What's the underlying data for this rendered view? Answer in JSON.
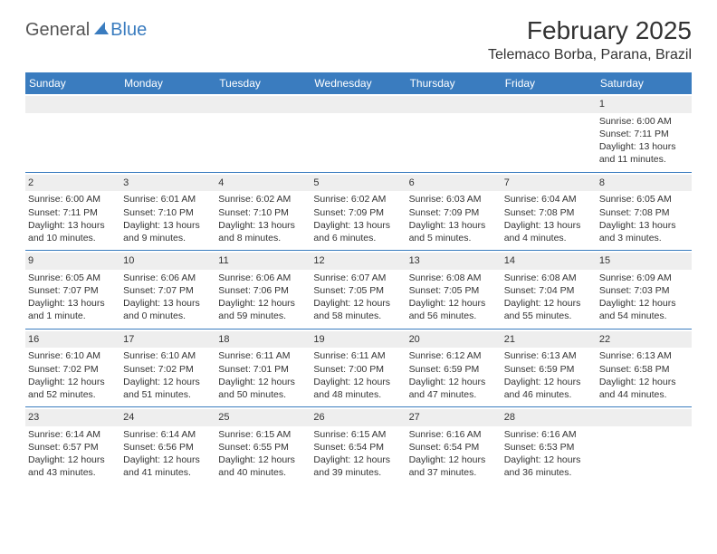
{
  "brand": {
    "word1": "General",
    "word2": "Blue",
    "logo_color": "#3a7cbf"
  },
  "title": {
    "month": "February 2025",
    "location": "Telemaco Borba, Parana, Brazil"
  },
  "colors": {
    "header_bg": "#3a7cbf",
    "header_text": "#ffffff",
    "daynum_bg": "#eeeeee",
    "week_divider": "#3a7cbf",
    "text": "#333333"
  },
  "day_names": [
    "Sunday",
    "Monday",
    "Tuesday",
    "Wednesday",
    "Thursday",
    "Friday",
    "Saturday"
  ],
  "weeks": [
    [
      {
        "day": "",
        "sunrise": "",
        "sunset": "",
        "daylight1": "",
        "daylight2": ""
      },
      {
        "day": "",
        "sunrise": "",
        "sunset": "",
        "daylight1": "",
        "daylight2": ""
      },
      {
        "day": "",
        "sunrise": "",
        "sunset": "",
        "daylight1": "",
        "daylight2": ""
      },
      {
        "day": "",
        "sunrise": "",
        "sunset": "",
        "daylight1": "",
        "daylight2": ""
      },
      {
        "day": "",
        "sunrise": "",
        "sunset": "",
        "daylight1": "",
        "daylight2": ""
      },
      {
        "day": "",
        "sunrise": "",
        "sunset": "",
        "daylight1": "",
        "daylight2": ""
      },
      {
        "day": "1",
        "sunrise": "Sunrise: 6:00 AM",
        "sunset": "Sunset: 7:11 PM",
        "daylight1": "Daylight: 13 hours",
        "daylight2": "and 11 minutes."
      }
    ],
    [
      {
        "day": "2",
        "sunrise": "Sunrise: 6:00 AM",
        "sunset": "Sunset: 7:11 PM",
        "daylight1": "Daylight: 13 hours",
        "daylight2": "and 10 minutes."
      },
      {
        "day": "3",
        "sunrise": "Sunrise: 6:01 AM",
        "sunset": "Sunset: 7:10 PM",
        "daylight1": "Daylight: 13 hours",
        "daylight2": "and 9 minutes."
      },
      {
        "day": "4",
        "sunrise": "Sunrise: 6:02 AM",
        "sunset": "Sunset: 7:10 PM",
        "daylight1": "Daylight: 13 hours",
        "daylight2": "and 8 minutes."
      },
      {
        "day": "5",
        "sunrise": "Sunrise: 6:02 AM",
        "sunset": "Sunset: 7:09 PM",
        "daylight1": "Daylight: 13 hours",
        "daylight2": "and 6 minutes."
      },
      {
        "day": "6",
        "sunrise": "Sunrise: 6:03 AM",
        "sunset": "Sunset: 7:09 PM",
        "daylight1": "Daylight: 13 hours",
        "daylight2": "and 5 minutes."
      },
      {
        "day": "7",
        "sunrise": "Sunrise: 6:04 AM",
        "sunset": "Sunset: 7:08 PM",
        "daylight1": "Daylight: 13 hours",
        "daylight2": "and 4 minutes."
      },
      {
        "day": "8",
        "sunrise": "Sunrise: 6:05 AM",
        "sunset": "Sunset: 7:08 PM",
        "daylight1": "Daylight: 13 hours",
        "daylight2": "and 3 minutes."
      }
    ],
    [
      {
        "day": "9",
        "sunrise": "Sunrise: 6:05 AM",
        "sunset": "Sunset: 7:07 PM",
        "daylight1": "Daylight: 13 hours",
        "daylight2": "and 1 minute."
      },
      {
        "day": "10",
        "sunrise": "Sunrise: 6:06 AM",
        "sunset": "Sunset: 7:07 PM",
        "daylight1": "Daylight: 13 hours",
        "daylight2": "and 0 minutes."
      },
      {
        "day": "11",
        "sunrise": "Sunrise: 6:06 AM",
        "sunset": "Sunset: 7:06 PM",
        "daylight1": "Daylight: 12 hours",
        "daylight2": "and 59 minutes."
      },
      {
        "day": "12",
        "sunrise": "Sunrise: 6:07 AM",
        "sunset": "Sunset: 7:05 PM",
        "daylight1": "Daylight: 12 hours",
        "daylight2": "and 58 minutes."
      },
      {
        "day": "13",
        "sunrise": "Sunrise: 6:08 AM",
        "sunset": "Sunset: 7:05 PM",
        "daylight1": "Daylight: 12 hours",
        "daylight2": "and 56 minutes."
      },
      {
        "day": "14",
        "sunrise": "Sunrise: 6:08 AM",
        "sunset": "Sunset: 7:04 PM",
        "daylight1": "Daylight: 12 hours",
        "daylight2": "and 55 minutes."
      },
      {
        "day": "15",
        "sunrise": "Sunrise: 6:09 AM",
        "sunset": "Sunset: 7:03 PM",
        "daylight1": "Daylight: 12 hours",
        "daylight2": "and 54 minutes."
      }
    ],
    [
      {
        "day": "16",
        "sunrise": "Sunrise: 6:10 AM",
        "sunset": "Sunset: 7:02 PM",
        "daylight1": "Daylight: 12 hours",
        "daylight2": "and 52 minutes."
      },
      {
        "day": "17",
        "sunrise": "Sunrise: 6:10 AM",
        "sunset": "Sunset: 7:02 PM",
        "daylight1": "Daylight: 12 hours",
        "daylight2": "and 51 minutes."
      },
      {
        "day": "18",
        "sunrise": "Sunrise: 6:11 AM",
        "sunset": "Sunset: 7:01 PM",
        "daylight1": "Daylight: 12 hours",
        "daylight2": "and 50 minutes."
      },
      {
        "day": "19",
        "sunrise": "Sunrise: 6:11 AM",
        "sunset": "Sunset: 7:00 PM",
        "daylight1": "Daylight: 12 hours",
        "daylight2": "and 48 minutes."
      },
      {
        "day": "20",
        "sunrise": "Sunrise: 6:12 AM",
        "sunset": "Sunset: 6:59 PM",
        "daylight1": "Daylight: 12 hours",
        "daylight2": "and 47 minutes."
      },
      {
        "day": "21",
        "sunrise": "Sunrise: 6:13 AM",
        "sunset": "Sunset: 6:59 PM",
        "daylight1": "Daylight: 12 hours",
        "daylight2": "and 46 minutes."
      },
      {
        "day": "22",
        "sunrise": "Sunrise: 6:13 AM",
        "sunset": "Sunset: 6:58 PM",
        "daylight1": "Daylight: 12 hours",
        "daylight2": "and 44 minutes."
      }
    ],
    [
      {
        "day": "23",
        "sunrise": "Sunrise: 6:14 AM",
        "sunset": "Sunset: 6:57 PM",
        "daylight1": "Daylight: 12 hours",
        "daylight2": "and 43 minutes."
      },
      {
        "day": "24",
        "sunrise": "Sunrise: 6:14 AM",
        "sunset": "Sunset: 6:56 PM",
        "daylight1": "Daylight: 12 hours",
        "daylight2": "and 41 minutes."
      },
      {
        "day": "25",
        "sunrise": "Sunrise: 6:15 AM",
        "sunset": "Sunset: 6:55 PM",
        "daylight1": "Daylight: 12 hours",
        "daylight2": "and 40 minutes."
      },
      {
        "day": "26",
        "sunrise": "Sunrise: 6:15 AM",
        "sunset": "Sunset: 6:54 PM",
        "daylight1": "Daylight: 12 hours",
        "daylight2": "and 39 minutes."
      },
      {
        "day": "27",
        "sunrise": "Sunrise: 6:16 AM",
        "sunset": "Sunset: 6:54 PM",
        "daylight1": "Daylight: 12 hours",
        "daylight2": "and 37 minutes."
      },
      {
        "day": "28",
        "sunrise": "Sunrise: 6:16 AM",
        "sunset": "Sunset: 6:53 PM",
        "daylight1": "Daylight: 12 hours",
        "daylight2": "and 36 minutes."
      },
      {
        "day": "",
        "sunrise": "",
        "sunset": "",
        "daylight1": "",
        "daylight2": ""
      }
    ]
  ]
}
